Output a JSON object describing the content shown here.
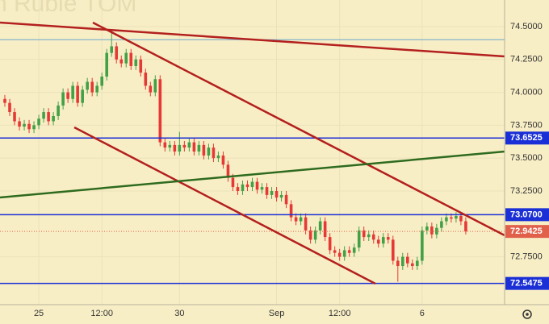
{
  "chart_data": {
    "type": "candlestick",
    "title": "n Ruble TOM",
    "up_color": "#43a047",
    "down_color": "#e53935",
    "ohlc": [
      [
        73.95,
        73.98,
        73.89,
        73.92
      ],
      [
        73.92,
        73.95,
        73.82,
        73.85
      ],
      [
        73.85,
        73.88,
        73.75,
        73.78
      ],
      [
        73.78,
        73.81,
        73.71,
        73.74
      ],
      [
        73.74,
        73.79,
        73.71,
        73.76
      ],
      [
        73.76,
        73.79,
        73.69,
        73.72
      ],
      [
        73.72,
        73.78,
        73.69,
        73.75
      ],
      [
        73.75,
        73.83,
        73.72,
        73.8
      ],
      [
        73.8,
        73.88,
        73.77,
        73.85
      ],
      [
        73.85,
        73.88,
        73.75,
        73.78
      ],
      [
        73.78,
        73.85,
        73.75,
        73.82
      ],
      [
        73.82,
        73.93,
        73.79,
        73.9
      ],
      [
        73.9,
        74.03,
        73.87,
        74.0
      ],
      [
        74.0,
        74.03,
        73.92,
        73.95
      ],
      [
        73.95,
        74.08,
        73.92,
        74.05
      ],
      [
        74.05,
        74.08,
        73.89,
        73.92
      ],
      [
        73.92,
        74.05,
        73.89,
        74.02
      ],
      [
        74.02,
        74.11,
        73.99,
        74.08
      ],
      [
        74.08,
        74.11,
        73.97,
        74.0
      ],
      [
        74.0,
        74.08,
        73.97,
        74.05
      ],
      [
        74.05,
        74.15,
        74.02,
        74.12
      ],
      [
        74.12,
        74.33,
        74.09,
        74.3
      ],
      [
        74.3,
        74.45,
        74.27,
        74.35
      ],
      [
        74.35,
        74.38,
        74.22,
        74.25
      ],
      [
        74.25,
        74.28,
        74.19,
        74.22
      ],
      [
        74.22,
        74.33,
        74.19,
        74.3
      ],
      [
        74.3,
        74.33,
        74.17,
        74.2
      ],
      [
        74.2,
        74.28,
        74.17,
        74.25
      ],
      [
        74.25,
        74.28,
        74.12,
        74.15
      ],
      [
        74.15,
        74.18,
        74.02,
        74.05
      ],
      [
        74.05,
        74.08,
        73.97,
        74.0
      ],
      [
        74.0,
        74.13,
        73.97,
        74.1
      ],
      [
        74.1,
        74.13,
        73.59,
        73.62
      ],
      [
        73.62,
        73.65,
        73.55,
        73.58
      ],
      [
        73.58,
        73.63,
        73.55,
        73.6
      ],
      [
        73.6,
        73.63,
        73.52,
        73.55
      ],
      [
        73.55,
        73.7,
        73.52,
        73.6
      ],
      [
        73.6,
        73.63,
        73.55,
        73.58
      ],
      [
        73.58,
        73.65,
        73.55,
        73.62
      ],
      [
        73.62,
        73.65,
        73.52,
        73.55
      ],
      [
        73.55,
        73.63,
        73.52,
        73.6
      ],
      [
        73.6,
        73.63,
        73.49,
        73.52
      ],
      [
        73.52,
        73.61,
        73.49,
        73.58
      ],
      [
        73.58,
        73.61,
        73.47,
        73.5
      ],
      [
        73.5,
        73.55,
        73.47,
        73.52
      ],
      [
        73.52,
        73.55,
        73.42,
        73.45
      ],
      [
        73.45,
        73.48,
        73.32,
        73.35
      ],
      [
        73.35,
        73.38,
        73.25,
        73.28
      ],
      [
        73.28,
        73.31,
        73.22,
        73.25
      ],
      [
        73.25,
        73.33,
        73.22,
        73.3
      ],
      [
        73.3,
        73.33,
        73.25,
        73.28
      ],
      [
        73.28,
        73.35,
        73.25,
        73.32
      ],
      [
        73.32,
        73.35,
        73.23,
        73.26
      ],
      [
        73.26,
        73.31,
        73.23,
        73.28
      ],
      [
        73.28,
        73.31,
        73.19,
        73.22
      ],
      [
        73.22,
        73.28,
        73.19,
        73.25
      ],
      [
        73.25,
        73.28,
        73.17,
        73.2
      ],
      [
        73.2,
        73.25,
        73.17,
        73.22
      ],
      [
        73.22,
        73.25,
        73.12,
        73.15
      ],
      [
        73.15,
        73.18,
        73.02,
        73.05
      ],
      [
        73.05,
        73.08,
        72.99,
        73.02
      ],
      [
        73.02,
        73.08,
        72.99,
        73.05
      ],
      [
        73.05,
        73.08,
        72.92,
        72.95
      ],
      [
        72.95,
        72.98,
        72.85,
        72.88
      ],
      [
        72.88,
        72.98,
        72.85,
        72.95
      ],
      [
        72.95,
        73.05,
        72.92,
        73.02
      ],
      [
        73.02,
        73.05,
        72.87,
        72.9
      ],
      [
        72.9,
        72.93,
        72.77,
        72.8
      ],
      [
        72.8,
        72.83,
        72.75,
        72.78
      ],
      [
        72.78,
        72.81,
        72.72,
        72.75
      ],
      [
        72.75,
        72.83,
        72.72,
        72.8
      ],
      [
        72.8,
        72.83,
        72.75,
        72.78
      ],
      [
        72.78,
        72.85,
        72.75,
        72.82
      ],
      [
        72.82,
        72.98,
        72.79,
        72.95
      ],
      [
        72.95,
        72.98,
        72.87,
        72.9
      ],
      [
        72.9,
        72.95,
        72.87,
        72.92
      ],
      [
        72.92,
        72.95,
        72.85,
        72.88
      ],
      [
        72.88,
        72.91,
        72.82,
        72.85
      ],
      [
        72.85,
        72.93,
        72.82,
        72.9
      ],
      [
        72.9,
        72.93,
        72.85,
        72.88
      ],
      [
        72.88,
        72.91,
        72.69,
        72.72
      ],
      [
        72.72,
        72.75,
        72.56,
        72.68
      ],
      [
        72.68,
        72.78,
        72.65,
        72.75
      ],
      [
        72.75,
        72.78,
        72.67,
        72.7
      ],
      [
        72.7,
        72.73,
        72.65,
        72.68
      ],
      [
        72.68,
        72.75,
        72.65,
        72.72
      ],
      [
        72.72,
        72.98,
        72.69,
        72.95
      ],
      [
        72.95,
        73.01,
        72.92,
        72.98
      ],
      [
        72.98,
        73.01,
        72.89,
        72.92
      ],
      [
        72.92,
        73.0,
        72.89,
        72.97
      ],
      [
        72.97,
        73.05,
        72.94,
        73.02
      ],
      [
        73.02,
        73.08,
        72.99,
        73.05
      ],
      [
        73.05,
        73.08,
        73.01,
        73.04
      ],
      [
        73.04,
        73.09,
        73.01,
        73.06
      ],
      [
        73.06,
        73.09,
        72.99,
        73.02
      ],
      [
        73.02,
        73.05,
        72.92,
        72.9425
      ]
    ],
    "xlim": [
      -1,
      103
    ],
    "xticks": [
      {
        "value": 7,
        "label": "25"
      },
      {
        "value": 20,
        "label": "12:00"
      },
      {
        "value": 36,
        "label": "30"
      },
      {
        "value": 56,
        "label": "Sep"
      },
      {
        "value": 69,
        "label": "12:00"
      },
      {
        "value": 86,
        "label": "6"
      }
    ],
    "ylim": [
      72.386,
      74.702
    ],
    "yticks": [
      {
        "value": 72.75,
        "label": "72.7500"
      },
      {
        "value": 73.25,
        "label": "73.2500"
      },
      {
        "value": 73.5,
        "label": "73.5000"
      },
      {
        "value": 73.75,
        "label": "73.7500"
      },
      {
        "value": 74.0,
        "label": "74.0000"
      },
      {
        "value": 74.25,
        "label": "74.2500"
      },
      {
        "value": 74.5,
        "label": "74.5000"
      }
    ],
    "guide_line": 74.4,
    "levels": [
      {
        "value": 73.6525,
        "label": "73.6525",
        "color": "#1a2fd6"
      },
      {
        "value": 73.07,
        "label": "73.0700",
        "color": "#1a2fd6"
      },
      {
        "value": 72.5475,
        "label": "72.5475",
        "color": "#1a2fd6"
      }
    ],
    "last_price": {
      "value": 72.9425,
      "label": "72.9425",
      "color": "#e0604a"
    }
  }
}
